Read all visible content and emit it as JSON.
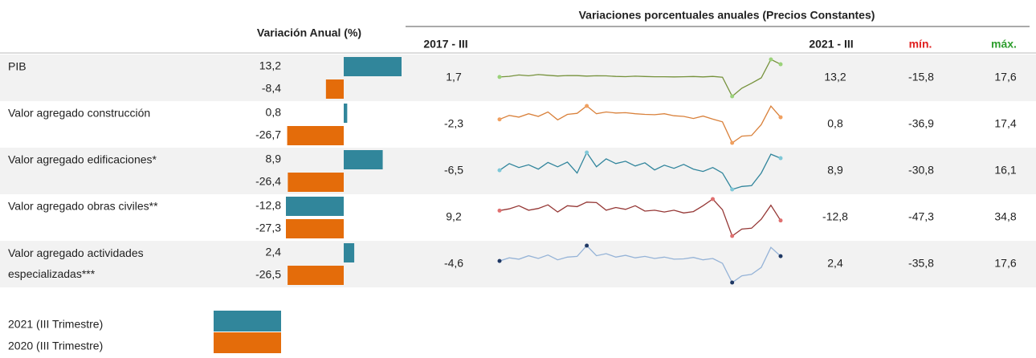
{
  "header": {
    "left_title": "Variación Anual (%)",
    "right_title": "Variaciones porcentuales anuales  (Precios Constantes)",
    "col_start": "2017 - III",
    "col_end": "2021 - III",
    "col_min": "mín.",
    "col_max": "máx.",
    "min_color": "#e02020",
    "max_color": "#2e9e2e"
  },
  "legend": [
    {
      "label": "2021 (III Trimestre)",
      "color": "#31869b"
    },
    {
      "label": "2020 (III Trimestre)",
      "color": "#e46c0a"
    }
  ],
  "rows": [
    {
      "label": "PIB",
      "v2021": {
        "value": 13.2,
        "label": "13,2"
      },
      "v2020": {
        "value": -8.4,
        "label": "-8,4"
      },
      "start": {
        "value": 1.7,
        "label": "1,7"
      },
      "end": {
        "value": 13.2,
        "label": "13,2"
      },
      "min": {
        "value": -15.8,
        "label": "-15,8"
      },
      "max": {
        "value": 17.6,
        "label": "17,6"
      },
      "line_color": "#76923c",
      "marker_color": "#9bd27a",
      "trend": [
        1.7,
        2.3,
        3.5,
        2.8,
        3.9,
        3.2,
        2.6,
        3.0,
        2.9,
        2.5,
        2.8,
        2.7,
        2.2,
        2.0,
        2.4,
        2.1,
        1.9,
        1.9,
        1.8,
        1.9,
        2.1,
        1.8,
        2.2,
        1.5,
        -15.8,
        -8.5,
        -4.0,
        0.9,
        17.6,
        13.2
      ]
    },
    {
      "label": "Valor agregado construcción",
      "v2021": {
        "value": 0.8,
        "label": "0,8"
      },
      "v2020": {
        "value": -26.7,
        "label": "-26,7"
      },
      "start": {
        "value": -2.3,
        "label": "-2,3"
      },
      "end": {
        "value": 0.8,
        "label": "0,8"
      },
      "min": {
        "value": -36.9,
        "label": "-36,9"
      },
      "max": {
        "value": 17.4,
        "label": "17,4"
      },
      "line_color": "#d9813b",
      "marker_color": "#f0a060",
      "trend": [
        -2.3,
        3.5,
        1.0,
        6.0,
        2.0,
        8.5,
        -3.0,
        5.0,
        6.5,
        17.4,
        6.0,
        8.5,
        7.0,
        7.5,
        6.0,
        5.0,
        4.5,
        6.0,
        3.0,
        2.0,
        -1.0,
        2.5,
        -2.0,
        -6.0,
        -36.9,
        -27.0,
        -26.0,
        -10.0,
        17.2,
        0.8
      ]
    },
    {
      "label": "Valor agregado edificaciones*",
      "v2021": {
        "value": 8.9,
        "label": "8,9"
      },
      "v2020": {
        "value": -26.4,
        "label": "-26,4"
      },
      "start": {
        "value": -6.5,
        "label": "-6,5"
      },
      "end": {
        "value": 8.9,
        "label": "8,9"
      },
      "min": {
        "value": -30.8,
        "label": "-30,8"
      },
      "max": {
        "value": 16.1,
        "label": "16,1"
      },
      "line_color": "#31859c",
      "marker_color": "#7ec8d8",
      "trend": [
        -6.5,
        2.0,
        -3.0,
        0.5,
        -5.0,
        3.5,
        -2.0,
        4.0,
        -10.0,
        16.1,
        -2.0,
        8.0,
        2.0,
        5.0,
        -1.0,
        3.0,
        -6.0,
        0.0,
        -4.0,
        1.0,
        -5.0,
        -8.0,
        -3.0,
        -10.0,
        -30.8,
        -27.0,
        -26.0,
        -10.0,
        14.0,
        8.9
      ]
    },
    {
      "label": "Valor agregado obras civiles**",
      "v2021": {
        "value": -12.8,
        "label": "-12,8"
      },
      "v2020": {
        "value": -27.3,
        "label": "-27,3"
      },
      "start": {
        "value": 9.2,
        "label": "9,2"
      },
      "end": {
        "value": -12.8,
        "label": "-12,8"
      },
      "min": {
        "value": -47.3,
        "label": "-47,3"
      },
      "max": {
        "value": 34.8,
        "label": "34,8"
      },
      "line_color": "#953735",
      "marker_color": "#e07070",
      "trend": [
        9.2,
        13.0,
        20.0,
        10.0,
        14.0,
        22.0,
        6.0,
        20.0,
        18.0,
        28.0,
        27.0,
        10.0,
        16.0,
        12.0,
        20.0,
        8.0,
        10.0,
        6.0,
        10.0,
        4.0,
        7.0,
        20.0,
        34.8,
        11.0,
        -47.3,
        -32.0,
        -30.0,
        -10.0,
        21.0,
        -12.8
      ]
    },
    {
      "label": "Valor agregado actividades especializadas***",
      "v2021": {
        "value": 2.4,
        "label": "2,4"
      },
      "v2020": {
        "value": -26.5,
        "label": "-26,5"
      },
      "start": {
        "value": -4.6,
        "label": "-4,6"
      },
      "end": {
        "value": 2.4,
        "label": "2,4"
      },
      "min": {
        "value": -35.8,
        "label": "-35,8"
      },
      "max": {
        "value": 17.6,
        "label": "17,6"
      },
      "line_color": "#95b3d7",
      "marker_color": "#1f3864",
      "trend": [
        -4.6,
        0.0,
        -2.0,
        3.0,
        -1.0,
        4.0,
        -3.0,
        1.0,
        2.0,
        17.6,
        3.0,
        6.0,
        1.0,
        3.5,
        0.0,
        2.0,
        -1.0,
        1.0,
        -2.0,
        -1.5,
        0.5,
        -3.0,
        -1.0,
        -8.0,
        -35.8,
        -26.0,
        -24.0,
        -14.0,
        15.0,
        2.4
      ]
    }
  ]
}
